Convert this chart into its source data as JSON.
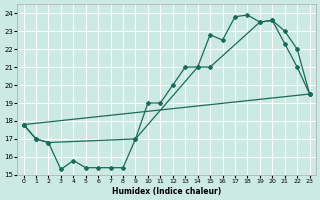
{
  "xlabel": "Humidex (Indice chaleur)",
  "bg_color": "#cce9e4",
  "grid_color": "#ffffff",
  "line_color": "#1a6b5a",
  "xlim": [
    -0.5,
    23.5
  ],
  "ylim": [
    15,
    24.5
  ],
  "xticks": [
    0,
    1,
    2,
    3,
    4,
    5,
    6,
    7,
    8,
    9,
    10,
    11,
    12,
    13,
    14,
    15,
    16,
    17,
    18,
    19,
    20,
    21,
    22,
    23
  ],
  "yticks": [
    15,
    16,
    17,
    18,
    19,
    20,
    21,
    22,
    23,
    24
  ],
  "line1_zigzag": {
    "x": [
      0,
      1,
      2,
      3,
      4,
      5,
      6,
      7,
      8,
      9,
      10,
      11,
      12,
      13,
      14,
      15,
      16,
      17,
      18,
      19,
      20,
      21,
      22,
      23
    ],
    "y": [
      17.8,
      17.0,
      16.8,
      15.3,
      15.8,
      15.4,
      15.4,
      15.4,
      15.4,
      17.0,
      19.0,
      19.0,
      20.0,
      21.0,
      21.0,
      22.8,
      22.5,
      23.8,
      23.9,
      23.5,
      23.6,
      22.3,
      21.0,
      19.5
    ]
  },
  "line2_diagonal": {
    "x": [
      0,
      1,
      2,
      9,
      14,
      15,
      19,
      20,
      21,
      22,
      23
    ],
    "y": [
      17.8,
      17.0,
      16.8,
      17.0,
      21.0,
      21.0,
      23.5,
      23.6,
      23.0,
      22.0,
      19.5
    ]
  },
  "line3_straight": {
    "x": [
      0,
      23
    ],
    "y": [
      17.8,
      19.5
    ]
  }
}
